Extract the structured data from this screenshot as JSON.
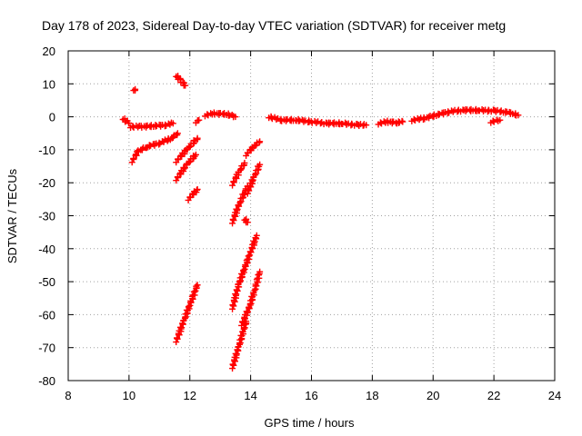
{
  "chart_data": {
    "type": "scatter",
    "title": "Day 178 of 2023, Sidereal Day-to-day VTEC variation (SDTVAR) for receiver metg",
    "xlabel": "GPS time / hours",
    "ylabel": "SDTVAR / TECUs",
    "xlim": [
      8,
      24
    ],
    "ylim": [
      -80,
      20
    ],
    "xticks": [
      8,
      10,
      12,
      14,
      16,
      18,
      20,
      22,
      24
    ],
    "yticks": [
      20,
      10,
      0,
      -10,
      -20,
      -30,
      -40,
      -50,
      -60,
      -70,
      -80
    ],
    "grid": true,
    "marker": "plus",
    "color": "#ff0000",
    "segments": [
      {
        "x": [
          9.8,
          10.0
        ],
        "y": [
          -0.5,
          -2.0
        ]
      },
      {
        "x": [
          10.15,
          10.2
        ],
        "y": [
          8.3,
          8.0
        ]
      },
      {
        "x": [
          10.05,
          10.4,
          10.8,
          11.2,
          11.45
        ],
        "y": [
          -3.0,
          -3.0,
          -2.8,
          -2.5,
          -2.0
        ]
      },
      {
        "x": [
          10.1,
          10.3,
          10.6,
          11.0,
          11.4,
          11.6
        ],
        "y": [
          -13.5,
          -10.5,
          -9.0,
          -8.0,
          -6.5,
          -5.0
        ]
      },
      {
        "x": [
          11.55,
          11.7,
          11.85
        ],
        "y": [
          12.5,
          11.0,
          9.5
        ]
      },
      {
        "x": [
          11.55,
          11.9,
          12.25
        ],
        "y": [
          -13.5,
          -10.0,
          -6.5
        ]
      },
      {
        "x": [
          11.55,
          11.9,
          12.2
        ],
        "y": [
          -19.0,
          -14.5,
          -11.5
        ]
      },
      {
        "x": [
          11.95,
          12.25
        ],
        "y": [
          -25.0,
          -22.0
        ]
      },
      {
        "x": [
          12.2,
          12.3
        ],
        "y": [
          -1.5,
          -1.0
        ]
      },
      {
        "x": [
          11.55,
          11.8,
          12.0,
          12.25
        ],
        "y": [
          -68.0,
          -62.0,
          -57.0,
          -51.0
        ]
      },
      {
        "x": [
          12.5,
          12.8,
          13.2,
          13.5
        ],
        "y": [
          0.5,
          1.0,
          0.8,
          0.0
        ]
      },
      {
        "x": [
          13.4,
          13.6,
          13.8
        ],
        "y": [
          -20.5,
          -17.0,
          -14.0
        ]
      },
      {
        "x": [
          13.4,
          13.6,
          13.8,
          13.9
        ],
        "y": [
          -32.0,
          -27.0,
          -23.0,
          -21.0
        ]
      },
      {
        "x": [
          13.8,
          13.9
        ],
        "y": [
          -31.0,
          -32.0
        ]
      },
      {
        "x": [
          13.4,
          13.6,
          13.8,
          14.0,
          14.2
        ],
        "y": [
          -58.0,
          -51.0,
          -46.0,
          -41.0,
          -36.0
        ]
      },
      {
        "x": [
          13.85,
          14.05,
          14.3
        ],
        "y": [
          -11.5,
          -9.5,
          -7.5
        ]
      },
      {
        "x": [
          13.9,
          14.1,
          14.3
        ],
        "y": [
          -23.0,
          -18.5,
          -14.5
        ]
      },
      {
        "x": [
          13.4,
          13.6,
          13.85
        ],
        "y": [
          -76.0,
          -70.0,
          -62.0
        ]
      },
      {
        "x": [
          13.7,
          13.95,
          14.15,
          14.3
        ],
        "y": [
          -63.0,
          -58.0,
          -52.0,
          -47.0
        ]
      },
      {
        "x": [
          14.6,
          15.0,
          15.5,
          16.0,
          16.5,
          17.0,
          17.5,
          17.8
        ],
        "y": [
          0.0,
          -1.0,
          -1.0,
          -1.5,
          -2.0,
          -2.0,
          -2.5,
          -2.5
        ]
      },
      {
        "x": [
          18.2,
          18.5,
          18.8,
          19.0
        ],
        "y": [
          -2.0,
          -1.5,
          -1.8,
          -1.5
        ]
      },
      {
        "x": [
          19.3,
          19.7,
          20.1,
          20.5,
          21.0,
          21.5,
          22.0,
          22.4,
          22.8
        ],
        "y": [
          -1.0,
          -0.5,
          0.5,
          1.5,
          2.0,
          2.0,
          1.8,
          1.5,
          0.5
        ]
      },
      {
        "x": [
          21.9,
          22.2
        ],
        "y": [
          -1.5,
          -1.0
        ]
      }
    ]
  }
}
